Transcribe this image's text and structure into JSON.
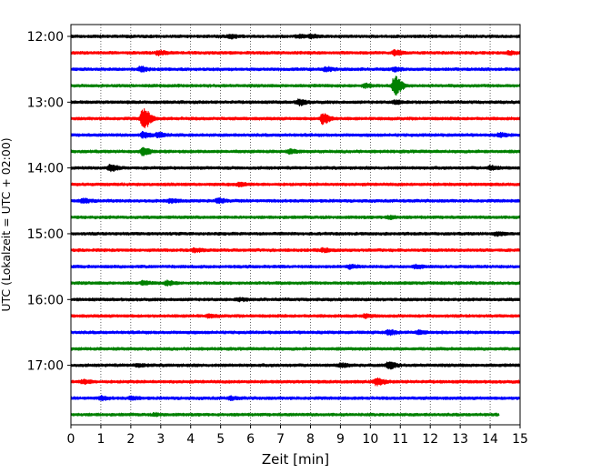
{
  "chart_data": {
    "type": "line",
    "subtype": "helicorder",
    "xlabel": "Zeit  [min]",
    "ylabel": "UTC (Lokalzeit = UTC + 02:00)",
    "xlim": [
      0,
      15
    ],
    "x_ticks": [
      "0",
      "1",
      "2",
      "3",
      "4",
      "5",
      "6",
      "7",
      "8",
      "9",
      "10",
      "11",
      "12",
      "13",
      "14",
      "15"
    ],
    "y_ticks": [
      "12:00",
      "13:00",
      "14:00",
      "15:00",
      "16:00",
      "17:00"
    ],
    "vertical_grid": "dotted at each minute",
    "trace_interval_minutes": 15,
    "trace_colors": [
      "#000000",
      "#ff0000",
      "#0000ff",
      "#008000"
    ],
    "rows": [
      {
        "start": "12:00",
        "color": "#000000",
        "events": [
          {
            "t": 5.3,
            "amp": 0.35
          },
          {
            "t": 7.6,
            "amp": 0.25
          },
          {
            "t": 8.0,
            "amp": 0.3
          }
        ]
      },
      {
        "start": "12:15",
        "color": "#ff0000",
        "events": [
          {
            "t": 2.9,
            "amp": 0.4
          },
          {
            "t": 10.8,
            "amp": 0.5
          },
          {
            "t": 14.6,
            "amp": 0.3
          }
        ]
      },
      {
        "start": "12:30",
        "color": "#0000ff",
        "events": [
          {
            "t": 2.3,
            "amp": 0.5
          },
          {
            "t": 8.5,
            "amp": 0.45
          },
          {
            "t": 10.8,
            "amp": 0.35
          }
        ]
      },
      {
        "start": "12:45",
        "color": "#008000",
        "events": [
          {
            "t": 10.8,
            "amp": 2.2
          },
          {
            "t": 9.8,
            "amp": 0.4
          }
        ]
      },
      {
        "start": "13:00",
        "color": "#000000",
        "events": [
          {
            "t": 7.6,
            "amp": 0.6
          },
          {
            "t": 10.8,
            "amp": 0.35
          }
        ]
      },
      {
        "start": "13:15",
        "color": "#ff0000",
        "events": [
          {
            "t": 2.4,
            "amp": 2.5
          },
          {
            "t": 8.4,
            "amp": 1.2
          }
        ]
      },
      {
        "start": "13:30",
        "color": "#0000ff",
        "events": [
          {
            "t": 2.4,
            "amp": 0.6
          },
          {
            "t": 2.9,
            "amp": 0.5
          },
          {
            "t": 14.3,
            "amp": 0.35
          }
        ]
      },
      {
        "start": "13:45",
        "color": "#008000",
        "events": [
          {
            "t": 7.3,
            "amp": 0.35
          },
          {
            "t": 2.4,
            "amp": 0.8
          }
        ]
      },
      {
        "start": "14:00",
        "color": "#000000",
        "events": [
          {
            "t": 1.3,
            "amp": 0.7
          },
          {
            "t": 14.0,
            "amp": 0.4
          }
        ]
      },
      {
        "start": "14:15",
        "color": "#ff0000",
        "events": [
          {
            "t": 5.6,
            "amp": 0.3
          }
        ]
      },
      {
        "start": "14:30",
        "color": "#0000ff",
        "events": [
          {
            "t": 0.4,
            "amp": 0.4
          },
          {
            "t": 3.3,
            "amp": 0.35
          },
          {
            "t": 4.9,
            "amp": 0.45
          }
        ]
      },
      {
        "start": "14:45",
        "color": "#008000",
        "events": [
          {
            "t": 10.6,
            "amp": 0.3
          }
        ]
      },
      {
        "start": "15:00",
        "color": "#000000",
        "events": [
          {
            "t": 14.2,
            "amp": 0.35
          }
        ]
      },
      {
        "start": "15:15",
        "color": "#ff0000",
        "events": [
          {
            "t": 4.1,
            "amp": 0.35
          },
          {
            "t": 8.4,
            "amp": 0.3
          }
        ]
      },
      {
        "start": "15:30",
        "color": "#0000ff",
        "events": [
          {
            "t": 9.3,
            "amp": 0.3
          },
          {
            "t": 11.5,
            "amp": 0.3
          }
        ]
      },
      {
        "start": "15:45",
        "color": "#008000",
        "events": [
          {
            "t": 3.2,
            "amp": 0.45
          },
          {
            "t": 2.4,
            "amp": 0.3
          }
        ]
      },
      {
        "start": "16:00",
        "color": "#000000",
        "events": [
          {
            "t": 5.6,
            "amp": 0.25
          }
        ]
      },
      {
        "start": "16:15",
        "color": "#ff0000",
        "events": [
          {
            "t": 4.6,
            "amp": 0.25
          },
          {
            "t": 9.8,
            "amp": 0.3
          }
        ]
      },
      {
        "start": "16:30",
        "color": "#0000ff",
        "events": [
          {
            "t": 10.6,
            "amp": 0.5
          },
          {
            "t": 11.6,
            "amp": 0.3
          }
        ]
      },
      {
        "start": "16:45",
        "color": "#008000",
        "events": []
      },
      {
        "start": "17:00",
        "color": "#000000",
        "events": [
          {
            "t": 2.2,
            "amp": 0.3
          },
          {
            "t": 9.0,
            "amp": 0.4
          },
          {
            "t": 10.6,
            "amp": 0.75
          }
        ]
      },
      {
        "start": "17:15",
        "color": "#ff0000",
        "events": [
          {
            "t": 0.4,
            "amp": 0.4
          },
          {
            "t": 10.2,
            "amp": 0.75
          }
        ]
      },
      {
        "start": "17:30",
        "color": "#0000ff",
        "events": [
          {
            "t": 1.0,
            "amp": 0.35
          },
          {
            "t": 2.0,
            "amp": 0.3
          },
          {
            "t": 5.3,
            "amp": 0.3
          }
        ]
      },
      {
        "start": "17:45",
        "color": "#008000",
        "end_minute": 14.3,
        "events": [
          {
            "t": 2.8,
            "amp": 0.2
          }
        ]
      }
    ]
  }
}
